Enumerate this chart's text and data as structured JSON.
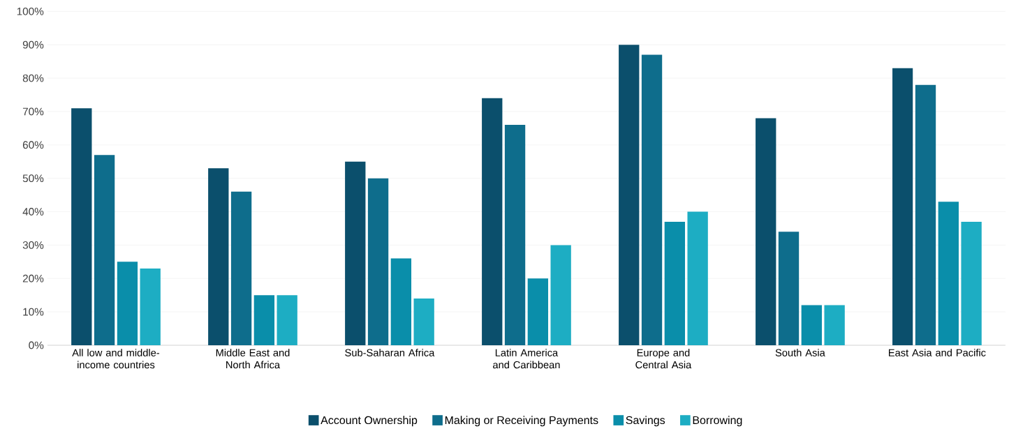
{
  "chart_data": {
    "type": "bar",
    "categories": [
      "All low and middle-income countries",
      "Middle East and North Africa",
      "Sub-Saharan Africa",
      "Latin America and Caribbean",
      "Europe and Central Asia",
      "South Asia",
      "East Asia and Pacific"
    ],
    "series": [
      {
        "name": "Account Ownership",
        "color": "#0b4f6c",
        "values": [
          71,
          53,
          55,
          74,
          90,
          68,
          83
        ]
      },
      {
        "name": "Making or Receiving Payments",
        "color": "#0e6d8c",
        "values": [
          57,
          46,
          50,
          66,
          87,
          34,
          78
        ]
      },
      {
        "name": "Savings",
        "color": "#0a8eaa",
        "values": [
          25,
          15,
          26,
          20,
          37,
          12,
          43
        ]
      },
      {
        "name": "Borrowing",
        "color": "#1dadc3",
        "values": [
          23,
          15,
          14,
          30,
          40,
          12,
          37
        ]
      }
    ],
    "ylim": [
      0,
      100
    ],
    "yticks": [
      {
        "value": 0,
        "label": "0%"
      },
      {
        "value": 10,
        "label": "10%"
      },
      {
        "value": 20,
        "label": "20%"
      },
      {
        "value": 30,
        "label": "30%"
      },
      {
        "value": 40,
        "label": "40%"
      },
      {
        "value": 50,
        "label": "50%"
      },
      {
        "value": 60,
        "label": "60%"
      },
      {
        "value": 70,
        "label": "70%"
      },
      {
        "value": 80,
        "label": "80%"
      },
      {
        "value": 90,
        "label": "90%"
      },
      {
        "value": 100,
        "label": "100%"
      }
    ],
    "grid": "y",
    "legend": "bottom"
  }
}
